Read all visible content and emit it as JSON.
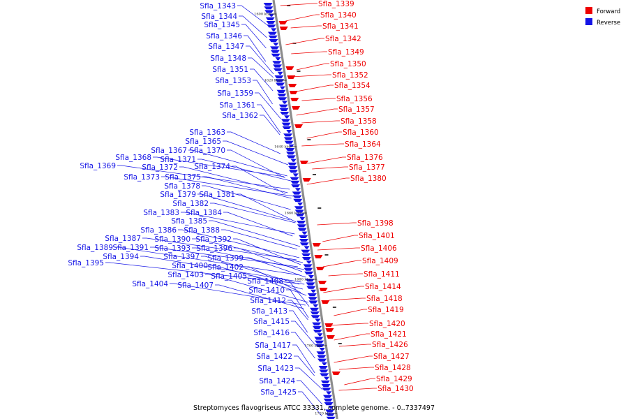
{
  "caption": "Streptomyces flavogriseus ATCC 33331, complete genome. - 0..7337497",
  "colors": {
    "forward": "#ee0000",
    "reverse": "#1414e6",
    "backbone": "#8c8c8c",
    "dash": "#111111"
  },
  "legend": [
    {
      "label": "Forward",
      "strand": "forward"
    },
    {
      "label": "Reverse",
      "strand": "reverse"
    }
  ],
  "ticks": [
    "1600 kbp",
    "1620 kbp",
    "1640 kbp",
    "1660 kbp",
    "1680 kbp",
    "1700 kbp",
    "1720 kbp"
  ],
  "forward_genes": [
    "Sfla_1339",
    "Sfla_1340",
    "Sfla_1341",
    "Sfla_1342",
    "Sfla_1349",
    "Sfla_1350",
    "Sfla_1352",
    "Sfla_1354",
    "Sfla_1356",
    "Sfla_1357",
    "Sfla_1358",
    "Sfla_1360",
    "Sfla_1364",
    "Sfla_1376",
    "Sfla_1377",
    "Sfla_1380",
    "Sfla_1398",
    "Sfla_1401",
    "Sfla_1406",
    "Sfla_1409",
    "Sfla_1411",
    "Sfla_1414",
    "Sfla_1418",
    "Sfla_1419",
    "Sfla_1420",
    "Sfla_1421",
    "Sfla_1426",
    "Sfla_1427",
    "Sfla_1428",
    "Sfla_1429",
    "Sfla_1430"
  ],
  "reverse_genes": [
    "Sfla_1343",
    "Sfla_1344",
    "Sfla_1345",
    "Sfla_1346",
    "Sfla_1347",
    "Sfla_1348",
    "Sfla_1351",
    "Sfla_1353",
    "Sfla_1359",
    "Sfla_1361",
    "Sfla_1362",
    "Sfla_1363",
    "Sfla_1365",
    "Sfla_1367",
    "Sfla_1370",
    "Sfla_1368",
    "Sfla_1371",
    "Sfla_1369",
    "Sfla_1372",
    "Sfla_1374",
    "Sfla_1373",
    "Sfla_1375",
    "Sfla_1378",
    "Sfla_1379",
    "Sfla_1381",
    "Sfla_1382",
    "Sfla_1383",
    "Sfla_1384",
    "Sfla_1385",
    "Sfla_1386",
    "Sfla_1388",
    "Sfla_1387",
    "Sfla_1390",
    "Sfla_1392",
    "Sfla_1389",
    "Sfla_1391",
    "Sfla_1393",
    "Sfla_1396",
    "Sfla_1394",
    "Sfla_1397",
    "Sfla_1399",
    "Sfla_1395",
    "Sfla_1400",
    "Sfla_1402",
    "Sfla_1403",
    "Sfla_1405",
    "Sfla_1404",
    "Sfla_1407",
    "Sfla_1408",
    "Sfla_1410",
    "Sfla_1412",
    "Sfla_1413",
    "Sfla_1415",
    "Sfla_1416",
    "Sfla_1417",
    "Sfla_1422",
    "Sfla_1423",
    "Sfla_1424",
    "Sfla_1425"
  ]
}
